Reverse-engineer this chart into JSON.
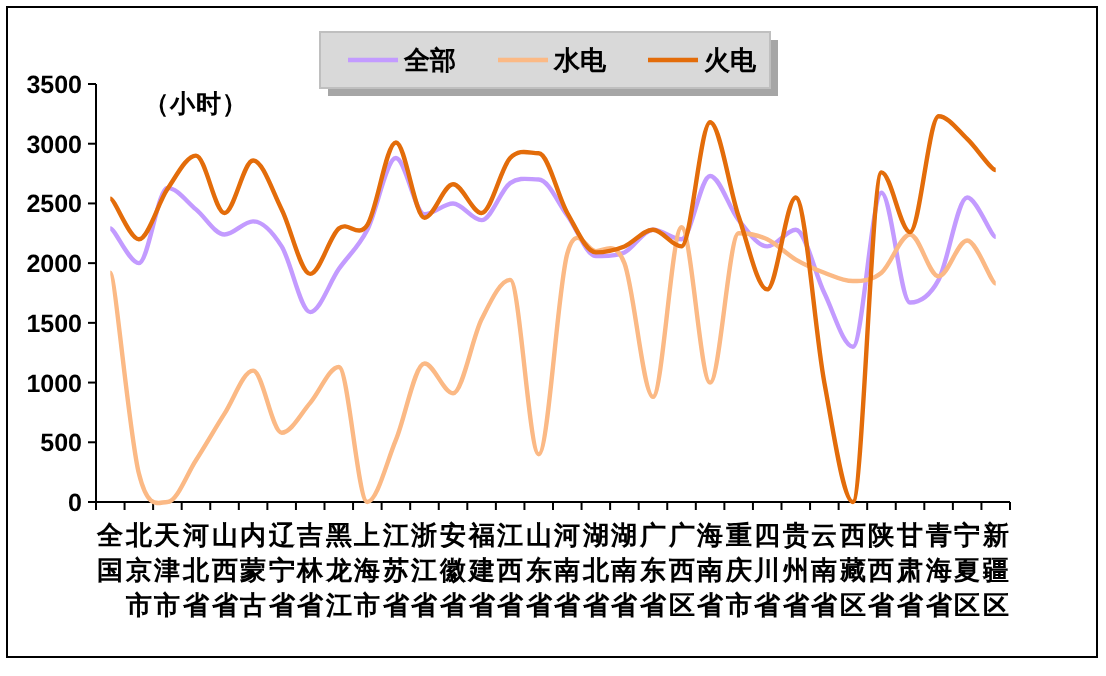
{
  "chart_data": {
    "type": "line",
    "ylabel": "（小时）",
    "categories": [
      "全国",
      "北京市",
      "天津市",
      "河北省",
      "山西省",
      "内蒙古",
      "辽宁省",
      "吉林省",
      "黑龙江",
      "上海市",
      "江苏省",
      "浙江省",
      "安徽省",
      "福建省",
      "江西省",
      "山东省",
      "河南省",
      "湖北省",
      "湖南省",
      "广东省",
      "广西区",
      "海南省",
      "重庆市",
      "四川省",
      "贵州省",
      "云南省",
      "西藏区",
      "陕西省",
      "甘肃省",
      "青海省",
      "宁夏区",
      "新疆区"
    ],
    "series": [
      {
        "name": "全部",
        "color": "#c39bff",
        "values": [
          2290,
          2000,
          2630,
          2450,
          2240,
          2350,
          2140,
          1590,
          1950,
          2280,
          2880,
          2410,
          2500,
          2360,
          2670,
          2700,
          2400,
          2060,
          2090,
          2280,
          2200,
          2730,
          2360,
          2140,
          2280,
          1750,
          1300,
          2590,
          1670,
          1860,
          2550,
          2220
        ]
      },
      {
        "name": "水电",
        "color": "#fbb985",
        "values": [
          1920,
          240,
          0,
          350,
          740,
          1100,
          580,
          830,
          1130,
          0,
          520,
          1160,
          910,
          1530,
          1860,
          400,
          2080,
          2100,
          2000,
          880,
          2300,
          1000,
          2250,
          2200,
          2030,
          1920,
          1850,
          1920,
          2240,
          1890,
          2190,
          1830
        ]
      },
      {
        "name": "火电",
        "color": "#e36c0a",
        "values": [
          2540,
          2200,
          2620,
          2900,
          2420,
          2860,
          2450,
          1910,
          2290,
          2320,
          3010,
          2380,
          2660,
          2420,
          2880,
          2920,
          2420,
          2090,
          2140,
          2280,
          2140,
          3180,
          2390,
          1780,
          2550,
          1000,
          0,
          2760,
          2260,
          3230,
          3040,
          2780
        ]
      }
    ],
    "ylim": [
      0,
      3500
    ],
    "yticks": [
      0,
      500,
      1000,
      1500,
      2000,
      2500,
      3000,
      3500
    ],
    "legend": "top",
    "grid": false,
    "marker": "none",
    "line_style": "solid"
  }
}
